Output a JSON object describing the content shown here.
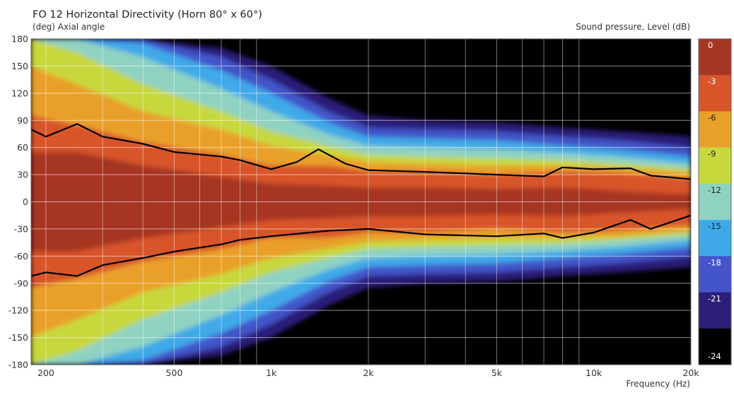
{
  "chart_data": {
    "type": "heatmap",
    "title": "FO 12 Horizontal Directivity (Horn 80° x 60°)",
    "ylabel": "(deg)  Axial angle",
    "xlabel": "Frequency  (Hz)",
    "colorbar_label": "Sound pressure, Level  (dB)",
    "x_scale": "log",
    "xlim": [
      180,
      20000
    ],
    "ylim": [
      -180,
      180
    ],
    "x_ticks": [
      {
        "value": 200,
        "label": "200"
      },
      {
        "value": 500,
        "label": "500"
      },
      {
        "value": 1000,
        "label": "1k"
      },
      {
        "value": 2000,
        "label": "2k"
      },
      {
        "value": 5000,
        "label": "5k"
      },
      {
        "value": 10000,
        "label": "10k"
      },
      {
        "value": 20000,
        "label": "20k"
      }
    ],
    "y_ticks": [
      {
        "value": 180,
        "label": "180"
      },
      {
        "value": 150,
        "label": "150"
      },
      {
        "value": 120,
        "label": "120"
      },
      {
        "value": 90,
        "label": "90"
      },
      {
        "value": 60,
        "label": "60"
      },
      {
        "value": 30,
        "label": "30"
      },
      {
        "value": 0,
        "label": "0"
      },
      {
        "value": -30,
        "label": "-30"
      },
      {
        "value": -60,
        "label": "-60"
      },
      {
        "value": -90,
        "label": "-90"
      },
      {
        "value": -120,
        "label": "-120"
      },
      {
        "value": -150,
        "label": "-150"
      },
      {
        "value": -180,
        "label": "-180"
      }
    ],
    "grid": true,
    "colorbar": {
      "levels": [
        {
          "label": "0",
          "value": 0,
          "color": "#a63624"
        },
        {
          "label": "-3",
          "value": -3,
          "color": "#d8552a"
        },
        {
          "label": "-6",
          "value": -6,
          "color": "#e9a02a"
        },
        {
          "label": "-9",
          "value": -9,
          "color": "#c7d83c"
        },
        {
          "label": "-12",
          "value": -12,
          "color": "#8fd2c2"
        },
        {
          "label": "-15",
          "value": -15,
          "color": "#3fa9e8"
        },
        {
          "label": "-18",
          "value": -18,
          "color": "#4355c9"
        },
        {
          "label": "-21",
          "value": -21,
          "color": "#2b1e78"
        },
        {
          "label": "-24",
          "value": -24,
          "color": "#000000"
        }
      ]
    },
    "contour_minus6dB": {
      "upper": [
        [
          180,
          80
        ],
        [
          200,
          72
        ],
        [
          250,
          86
        ],
        [
          300,
          72
        ],
        [
          400,
          64
        ],
        [
          500,
          55
        ],
        [
          700,
          50
        ],
        [
          800,
          46
        ],
        [
          1000,
          36
        ],
        [
          1200,
          44
        ],
        [
          1400,
          58
        ],
        [
          1700,
          42
        ],
        [
          2000,
          35
        ],
        [
          3000,
          33
        ],
        [
          5000,
          30
        ],
        [
          7000,
          28
        ],
        [
          8000,
          38
        ],
        [
          10000,
          36
        ],
        [
          13000,
          37
        ],
        [
          15000,
          29
        ],
        [
          20000,
          25
        ]
      ],
      "lower": [
        [
          180,
          -82
        ],
        [
          200,
          -78
        ],
        [
          250,
          -82
        ],
        [
          300,
          -70
        ],
        [
          400,
          -62
        ],
        [
          500,
          -55
        ],
        [
          700,
          -47
        ],
        [
          800,
          -42
        ],
        [
          1000,
          -38
        ],
        [
          1500,
          -32
        ],
        [
          2000,
          -30
        ],
        [
          3000,
          -36
        ],
        [
          5000,
          -38
        ],
        [
          7000,
          -35
        ],
        [
          8000,
          -40
        ],
        [
          10000,
          -34
        ],
        [
          13000,
          -20
        ],
        [
          15000,
          -30
        ],
        [
          20000,
          -15
        ]
      ]
    }
  }
}
